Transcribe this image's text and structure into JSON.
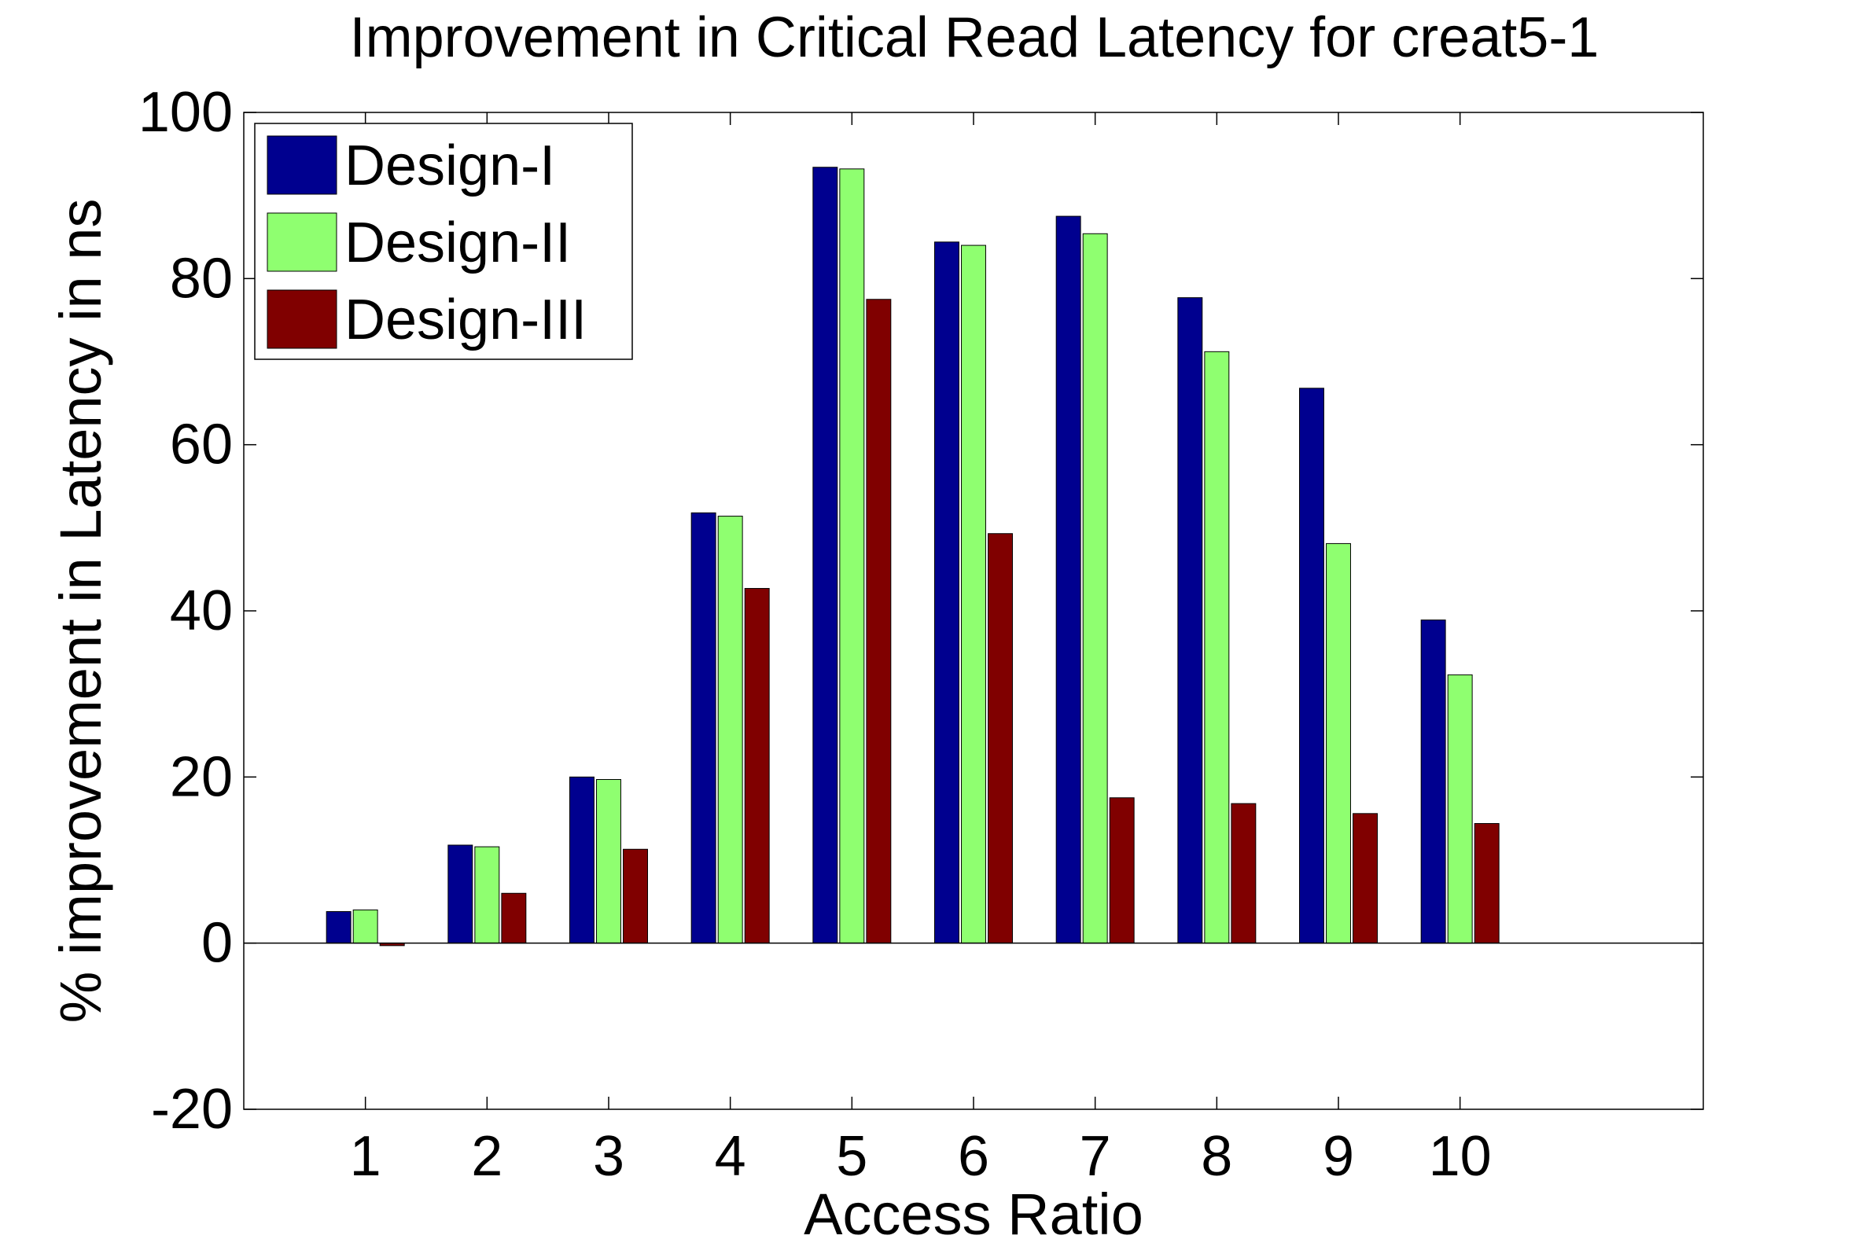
{
  "chart_data": {
    "type": "bar",
    "title": "Improvement in Critical Read Latency for creat5-1",
    "xlabel": "Access Ratio",
    "ylabel": "% improvement in Latency in ns",
    "categories": [
      "1",
      "2",
      "3",
      "4",
      "5",
      "6",
      "7",
      "8",
      "9",
      "10"
    ],
    "xlim": [
      0,
      12
    ],
    "ylim": [
      -20,
      100
    ],
    "yticks": [
      -20,
      0,
      20,
      40,
      60,
      80,
      100
    ],
    "yticklabels": [
      "-20",
      "0",
      "20",
      "40",
      "60",
      "80",
      "100"
    ],
    "grid": false,
    "legend_position": "top-left",
    "series": [
      {
        "name": "Design-I",
        "color": "#00008f",
        "values": [
          3.8,
          11.8,
          20.0,
          51.8,
          93.4,
          84.4,
          87.5,
          77.7,
          66.8,
          38.9
        ]
      },
      {
        "name": "Design-II",
        "color": "#8fff70",
        "values": [
          4.0,
          11.6,
          19.7,
          51.4,
          93.2,
          84.0,
          85.4,
          71.2,
          48.1,
          32.3
        ]
      },
      {
        "name": "Design-III",
        "color": "#800000",
        "values": [
          -0.3,
          6.0,
          11.3,
          42.7,
          77.5,
          49.3,
          17.5,
          16.8,
          15.6,
          14.4
        ]
      }
    ]
  }
}
